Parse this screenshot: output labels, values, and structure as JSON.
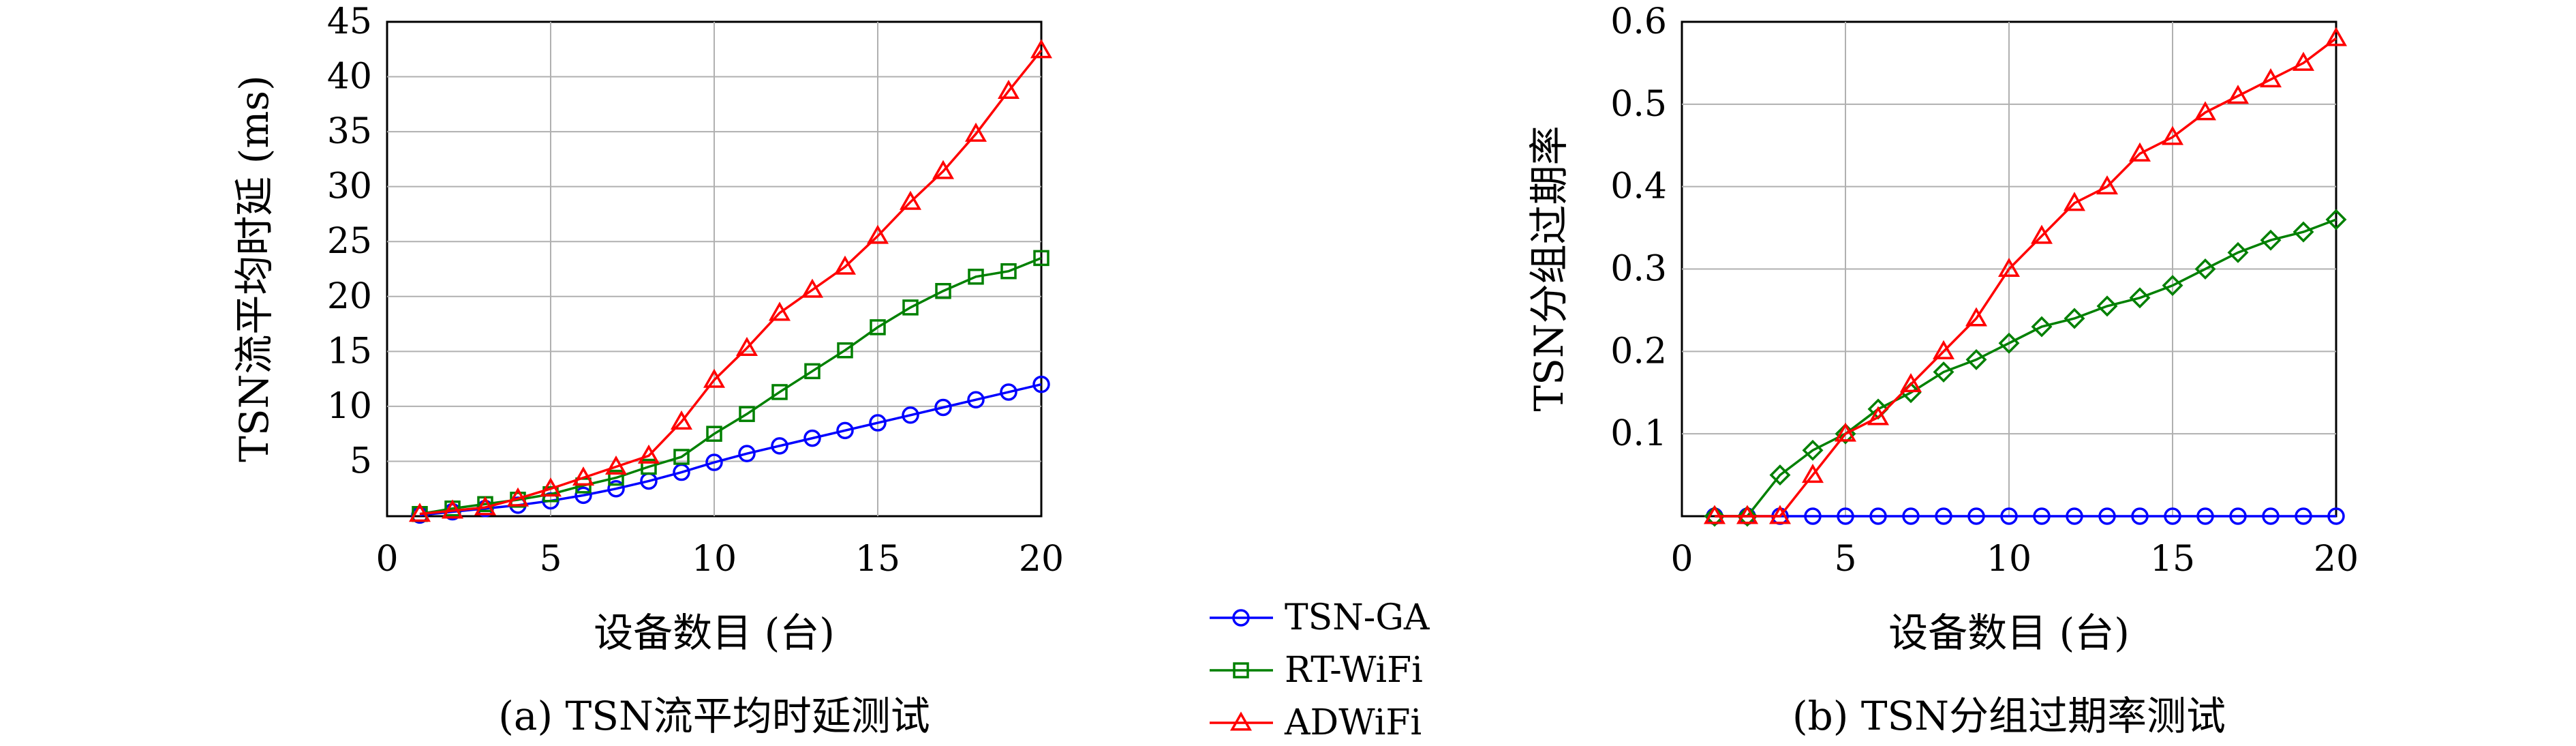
{
  "chart_data": [
    {
      "type": "line",
      "caption": "(a) TSN流平均时延测试",
      "xlabel": "设备数目 (台)",
      "ylabel": "TSN流平均时延 (ms)",
      "xlim": [
        0,
        20
      ],
      "ylim": [
        0,
        45
      ],
      "xticks": [
        "0",
        "5",
        "10",
        "15",
        "20"
      ],
      "yticks": [
        "5",
        "10",
        "15",
        "20",
        "25",
        "30",
        "35",
        "40",
        "45"
      ],
      "grid": true,
      "x": [
        1,
        2,
        3,
        4,
        5,
        6,
        7,
        8,
        9,
        10,
        11,
        12,
        13,
        14,
        15,
        16,
        17,
        18,
        19,
        20
      ],
      "series": [
        {
          "name": "TSN-GA",
          "color": "#0000ff",
          "marker": "circle",
          "values": [
            0.1,
            0.4,
            0.7,
            1.0,
            1.4,
            1.9,
            2.5,
            3.2,
            4.0,
            4.9,
            5.7,
            6.4,
            7.1,
            7.8,
            8.5,
            9.2,
            9.9,
            10.6,
            11.3,
            12.0
          ]
        },
        {
          "name": "RT-WiFi",
          "color": "#008000",
          "marker": "square",
          "values": [
            0.2,
            0.7,
            1.1,
            1.5,
            2.0,
            2.8,
            3.5,
            4.5,
            5.4,
            7.5,
            9.3,
            11.3,
            13.2,
            15.1,
            17.2,
            19.0,
            20.5,
            21.8,
            22.3,
            23.5
          ]
        },
        {
          "name": "ADWiFi",
          "color": "#ff0000",
          "marker": "triangle",
          "values": [
            0.2,
            0.5,
            0.8,
            1.6,
            2.5,
            3.5,
            4.5,
            5.5,
            8.6,
            12.4,
            15.3,
            18.5,
            20.6,
            22.7,
            25.5,
            28.6,
            31.4,
            34.8,
            38.7,
            42.4
          ]
        }
      ]
    },
    {
      "type": "line",
      "caption": "(b) TSN分组过期率测试",
      "xlabel": "设备数目 (台)",
      "ylabel": "TSN分组过期率",
      "xlim": [
        0,
        20
      ],
      "ylim": [
        0,
        0.6
      ],
      "xticks": [
        "0",
        "5",
        "10",
        "15",
        "20"
      ],
      "yticks": [
        "0.1",
        "0.2",
        "0.3",
        "0.4",
        "0.5",
        "0.6"
      ],
      "grid": true,
      "x": [
        1,
        2,
        3,
        4,
        5,
        6,
        7,
        8,
        9,
        10,
        11,
        12,
        13,
        14,
        15,
        16,
        17,
        18,
        19,
        20
      ],
      "series": [
        {
          "name": "TSN-GA",
          "color": "#0000ff",
          "marker": "circle",
          "values": [
            0,
            0,
            0,
            0,
            0,
            0,
            0,
            0,
            0,
            0,
            0,
            0,
            0,
            0,
            0,
            0,
            0,
            0,
            0,
            0
          ]
        },
        {
          "name": "RT-WiFi",
          "color": "#008000",
          "marker": "diamond",
          "values": [
            0,
            0,
            0.05,
            0.08,
            0.1,
            0.13,
            0.15,
            0.175,
            0.19,
            0.21,
            0.23,
            0.24,
            0.255,
            0.265,
            0.28,
            0.3,
            0.32,
            0.335,
            0.345,
            0.36
          ]
        },
        {
          "name": "ADWiFi",
          "color": "#ff0000",
          "marker": "triangle",
          "values": [
            0,
            0,
            0,
            0.05,
            0.1,
            0.12,
            0.16,
            0.2,
            0.24,
            0.3,
            0.34,
            0.38,
            0.4,
            0.44,
            0.46,
            0.49,
            0.51,
            0.53,
            0.55,
            0.58
          ]
        }
      ]
    }
  ],
  "legend": {
    "placement": "center-bottom",
    "items": [
      {
        "label": "TSN-GA",
        "color": "#0000ff",
        "marker": "circle"
      },
      {
        "label": "RT-WiFi",
        "color": "#008000",
        "marker": "square"
      },
      {
        "label": "ADWiFi",
        "color": "#ff0000",
        "marker": "triangle"
      }
    ]
  }
}
